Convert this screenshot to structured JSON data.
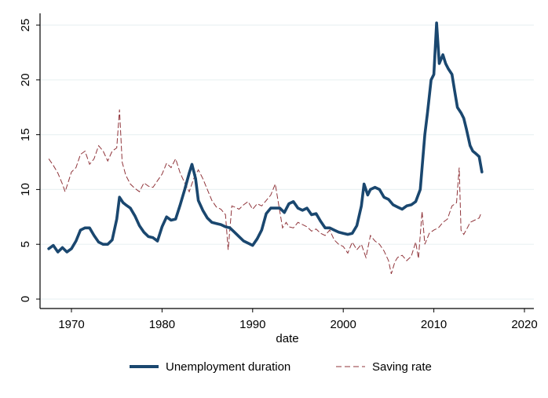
{
  "chart_data": {
    "type": "line",
    "title": "",
    "xlabel": "date",
    "ylabel": "",
    "xlim": [
      1966.5,
      2021
    ],
    "ylim": [
      -1,
      26
    ],
    "grid": true,
    "legend_position": "bottom",
    "x_ticks": [
      1970,
      1980,
      1990,
      2000,
      2010,
      2020
    ],
    "x_tick_labels": [
      "1970",
      "1980",
      "1990",
      "2000",
      "2010",
      "2020"
    ],
    "y_ticks": [
      0,
      5,
      10,
      15,
      20,
      25
    ],
    "y_tick_labels": [
      "0",
      "5",
      "10",
      "15",
      "20",
      "25"
    ],
    "colors": {
      "unemployment": "#1a476f",
      "saving": "#90353b",
      "grid": "#eaf2f3"
    },
    "series": [
      {
        "name": "Unemployment duration",
        "style": "solid",
        "x": [
          1967.5,
          1968,
          1968.5,
          1969,
          1969.5,
          1970,
          1970.5,
          1971,
          1971.5,
          1972,
          1972.5,
          1973,
          1973.5,
          1974,
          1974.5,
          1975,
          1975.3,
          1975.7,
          1976,
          1976.5,
          1977,
          1977.5,
          1978,
          1978.5,
          1979,
          1979.5,
          1980,
          1980.5,
          1981,
          1981.5,
          1982,
          1982.5,
          1983,
          1983.3,
          1983.7,
          1984,
          1984.5,
          1985,
          1985.5,
          1986,
          1986.5,
          1987,
          1987.5,
          1988,
          1988.5,
          1989,
          1989.5,
          1990,
          1990.5,
          1991,
          1991.5,
          1992,
          1992.5,
          1993,
          1993.5,
          1994,
          1994.5,
          1995,
          1995.5,
          1996,
          1996.5,
          1997,
          1997.5,
          1998,
          1998.5,
          1999,
          1999.5,
          2000,
          2000.5,
          2001,
          2001.5,
          2002,
          2002.3,
          2002.7,
          2003,
          2003.5,
          2004,
          2004.5,
          2005,
          2005.5,
          2006,
          2006.5,
          2007,
          2007.5,
          2008,
          2008.5,
          2009,
          2009.3,
          2009.7,
          2010,
          2010.3,
          2010.6,
          2011,
          2011.3,
          2011.6,
          2012,
          2012.3,
          2012.6,
          2013,
          2013.3,
          2013.6,
          2014,
          2014.3,
          2014.6,
          2015,
          2015.3
        ],
        "values": [
          4.6,
          4.9,
          4.3,
          4.7,
          4.3,
          4.6,
          5.3,
          6.3,
          6.5,
          6.5,
          5.8,
          5.2,
          5.0,
          5.0,
          5.4,
          7.3,
          9.3,
          8.8,
          8.6,
          8.3,
          7.6,
          6.7,
          6.1,
          5.7,
          5.6,
          5.3,
          6.6,
          7.5,
          7.2,
          7.3,
          8.6,
          10.0,
          11.5,
          12.3,
          11.0,
          9.0,
          8.1,
          7.4,
          7.0,
          6.9,
          6.8,
          6.6,
          6.5,
          6.1,
          5.7,
          5.3,
          5.1,
          4.9,
          5.5,
          6.3,
          7.8,
          8.3,
          8.3,
          8.3,
          7.9,
          8.7,
          8.9,
          8.3,
          8.1,
          8.3,
          7.7,
          7.8,
          7.1,
          6.5,
          6.5,
          6.3,
          6.1,
          6.0,
          5.9,
          6.0,
          6.7,
          8.5,
          10.5,
          9.5,
          10.0,
          10.2,
          10.0,
          9.3,
          9.1,
          8.6,
          8.4,
          8.2,
          8.5,
          8.6,
          8.9,
          10.0,
          15.0,
          17.0,
          20.0,
          20.5,
          25.2,
          21.5,
          22.3,
          21.5,
          21.0,
          20.5,
          19.0,
          17.5,
          17.0,
          16.5,
          15.5,
          14.0,
          13.5,
          13.3,
          13.0,
          11.6
        ]
      },
      {
        "name": "Saving rate",
        "style": "dashed",
        "x": [
          1967.5,
          1968,
          1968.5,
          1969,
          1969.3,
          1969.7,
          1970,
          1970.5,
          1971,
          1971.5,
          1972,
          1972.5,
          1973,
          1973.5,
          1974,
          1974.5,
          1975,
          1975.3,
          1975.6,
          1976,
          1976.5,
          1977,
          1977.5,
          1978,
          1978.5,
          1979,
          1979.5,
          1980,
          1980.5,
          1981,
          1981.5,
          1982,
          1982.5,
          1983,
          1983.5,
          1984,
          1984.5,
          1985,
          1985.5,
          1986,
          1986.5,
          1987,
          1987.3,
          1987.7,
          1988,
          1988.5,
          1989,
          1989.5,
          1990,
          1990.5,
          1991,
          1991.5,
          1992,
          1992.5,
          1993,
          1993.3,
          1993.7,
          1994,
          1994.5,
          1995,
          1995.5,
          1996,
          1996.5,
          1997,
          1997.5,
          1998,
          1998.5,
          1999,
          1999.5,
          2000,
          2000.5,
          2001,
          2001.5,
          2002,
          2002.5,
          2003,
          2003.5,
          2004,
          2004.5,
          2005,
          2005.3,
          2005.7,
          2006,
          2006.5,
          2007,
          2007.5,
          2008,
          2008.3,
          2008.7,
          2009,
          2009.5,
          2010,
          2010.5,
          2011,
          2011.5,
          2012,
          2012.5,
          2012.8,
          2013,
          2013.3,
          2013.7,
          2014,
          2014.5,
          2015,
          2015.2
        ],
        "values": [
          12.8,
          12.2,
          11.5,
          10.5,
          9.8,
          10.8,
          11.6,
          12.0,
          13.2,
          13.5,
          12.3,
          12.8,
          14.0,
          13.5,
          12.6,
          13.5,
          13.8,
          17.3,
          12.5,
          11.3,
          10.5,
          10.1,
          9.8,
          10.6,
          10.3,
          10.2,
          10.8,
          11.4,
          12.4,
          12.0,
          12.8,
          11.5,
          10.6,
          9.8,
          11.0,
          11.8,
          11.0,
          10.0,
          9.0,
          8.4,
          8.2,
          7.7,
          4.5,
          8.5,
          8.4,
          8.2,
          8.6,
          8.9,
          8.2,
          8.7,
          8.5,
          9.0,
          9.5,
          10.5,
          8.0,
          6.5,
          7.0,
          6.6,
          6.5,
          7.0,
          6.8,
          6.6,
          6.2,
          6.4,
          6.0,
          5.8,
          6.3,
          5.4,
          5.0,
          4.8,
          4.2,
          5.2,
          4.5,
          5.0,
          3.8,
          5.8,
          5.3,
          5.0,
          4.4,
          3.5,
          2.3,
          3.4,
          3.8,
          4.0,
          3.5,
          3.9,
          5.2,
          3.7,
          8.0,
          5.0,
          6.0,
          6.3,
          6.5,
          7.0,
          7.3,
          8.5,
          8.8,
          12.0,
          6.3,
          5.9,
          6.5,
          7.0,
          7.2,
          7.4,
          7.8
        ]
      }
    ]
  }
}
